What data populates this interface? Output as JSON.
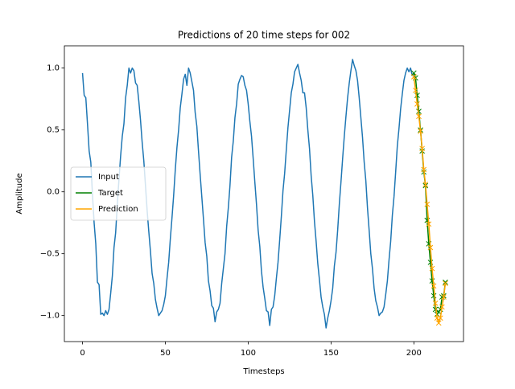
{
  "chart_data": {
    "type": "line",
    "title": "Predictions of 20 time steps for 002",
    "xlabel": "Timesteps",
    "ylabel": "Amplitude",
    "xlim": [
      -10.95,
      229.95
    ],
    "xticks": [
      0,
      50,
      100,
      150,
      200
    ],
    "ylim": [
      -1.21,
      1.18
    ],
    "yticks": [
      {
        "value": -1.0,
        "label": "−1.0"
      },
      {
        "value": -0.5,
        "label": "−0.5"
      },
      {
        "value": 0.0,
        "label": "0.0"
      },
      {
        "value": 0.5,
        "label": "0.5"
      },
      {
        "value": 1.0,
        "label": "1.0"
      }
    ],
    "legend": "center left",
    "series": [
      {
        "name": "Input",
        "color": "#1f77b4",
        "marker": null,
        "x": [
          0,
          1,
          2,
          3,
          4,
          5,
          6,
          7,
          8,
          9,
          10,
          11,
          12,
          13,
          14,
          15,
          16,
          17,
          18,
          19,
          20,
          21,
          22,
          23,
          24,
          25,
          26,
          27,
          28,
          29,
          30,
          31,
          32,
          33,
          34,
          35,
          36,
          37,
          38,
          39,
          40,
          41,
          42,
          43,
          44,
          45,
          46,
          47,
          48,
          49,
          50,
          51,
          52,
          53,
          54,
          55,
          56,
          57,
          58,
          59,
          60,
          61,
          62,
          63,
          64,
          65,
          66,
          67,
          68,
          69,
          70,
          71,
          72,
          73,
          74,
          75,
          76,
          77,
          78,
          79,
          80,
          81,
          82,
          83,
          84,
          85,
          86,
          87,
          88,
          89,
          90,
          91,
          92,
          93,
          94,
          95,
          96,
          97,
          98,
          99,
          100,
          101,
          102,
          103,
          104,
          105,
          106,
          107,
          108,
          109,
          110,
          111,
          112,
          113,
          114,
          115,
          116,
          117,
          118,
          119,
          120,
          121,
          122,
          123,
          124,
          125,
          126,
          127,
          128,
          129,
          130,
          131,
          132,
          133,
          134,
          135,
          136,
          137,
          138,
          139,
          140,
          141,
          142,
          143,
          144,
          145,
          146,
          147,
          148,
          149,
          150,
          151,
          152,
          153,
          154,
          155,
          156,
          157,
          158,
          159,
          160,
          161,
          162,
          163,
          164,
          165,
          166,
          167,
          168,
          169,
          170,
          171,
          172,
          173,
          174,
          175,
          176,
          177,
          178,
          179,
          180,
          181,
          182,
          183,
          184,
          185,
          186,
          187,
          188,
          189,
          190,
          191,
          192,
          193,
          194,
          195,
          196,
          197,
          198,
          199,
          200
        ],
        "values": [
          0.96,
          0.78,
          0.76,
          0.55,
          0.33,
          0.24,
          -0.02,
          -0.25,
          -0.42,
          -0.73,
          -0.75,
          -0.99,
          -0.98,
          -1.0,
          -0.96,
          -0.99,
          -0.95,
          -0.82,
          -0.68,
          -0.45,
          -0.33,
          -0.1,
          0.1,
          0.29,
          0.45,
          0.55,
          0.76,
          0.86,
          1.0,
          0.96,
          1.0,
          0.98,
          0.88,
          0.86,
          0.73,
          0.58,
          0.4,
          0.25,
          0.05,
          -0.15,
          -0.32,
          -0.48,
          -0.66,
          -0.74,
          -0.87,
          -0.94,
          -1.0,
          -0.98,
          -0.96,
          -0.91,
          -0.84,
          -0.7,
          -0.57,
          -0.38,
          -0.21,
          -0.03,
          0.18,
          0.36,
          0.5,
          0.68,
          0.79,
          0.91,
          0.95,
          0.86,
          1.0,
          0.96,
          0.89,
          0.82,
          0.64,
          0.53,
          0.33,
          0.14,
          -0.04,
          -0.22,
          -0.41,
          -0.52,
          -0.72,
          -0.8,
          -0.92,
          -0.94,
          -1.05,
          -0.97,
          -0.95,
          -0.9,
          -0.74,
          -0.62,
          -0.5,
          -0.28,
          -0.13,
          0.05,
          0.28,
          0.41,
          0.6,
          0.71,
          0.87,
          0.91,
          0.94,
          0.93,
          0.86,
          0.82,
          0.71,
          0.57,
          0.45,
          0.27,
          0.08,
          -0.1,
          -0.31,
          -0.44,
          -0.64,
          -0.77,
          -0.86,
          -0.96,
          -0.97,
          -1.08,
          -0.95,
          -0.93,
          -0.84,
          -0.7,
          -0.57,
          -0.39,
          -0.2,
          0.01,
          0.15,
          0.34,
          0.52,
          0.66,
          0.8,
          0.87,
          0.97,
          1.0,
          1.03,
          0.96,
          0.9,
          0.8,
          0.8,
          0.68,
          0.5,
          0.35,
          0.13,
          -0.03,
          -0.24,
          -0.4,
          -0.58,
          -0.71,
          -0.85,
          -0.93,
          -0.99,
          -1.1,
          -1.02,
          -0.96,
          -0.88,
          -0.78,
          -0.6,
          -0.49,
          -0.31,
          -0.1,
          0.08,
          0.27,
          0.45,
          0.61,
          0.76,
          0.88,
          0.98,
          1.07,
          1.02,
          0.98,
          0.9,
          0.76,
          0.6,
          0.44,
          0.24,
          0.09,
          -0.13,
          -0.31,
          -0.5,
          -0.62,
          -0.78,
          -0.88,
          -0.93,
          -1.0,
          -0.98,
          -0.97,
          -0.93,
          -0.83,
          -0.72,
          -0.55,
          -0.4,
          -0.19,
          -0.04,
          0.16,
          0.37,
          0.51,
          0.67,
          0.79,
          0.9,
          0.96,
          1.0,
          0.97,
          1.0,
          0.94,
          0.96
        ]
      },
      {
        "name": "Target",
        "color": "#008000",
        "marker": "x",
        "x": [
          200,
          201,
          202,
          203,
          204,
          205,
          206,
          207,
          208,
          209,
          210,
          211,
          212,
          213,
          214,
          215,
          216,
          217,
          218,
          219
        ],
        "values": [
          0.96,
          0.92,
          0.78,
          0.65,
          0.5,
          0.33,
          0.16,
          0.05,
          -0.23,
          -0.42,
          -0.57,
          -0.72,
          -0.84,
          -0.95,
          -0.99,
          -0.97,
          -0.95,
          -0.85,
          -0.84,
          -0.73
        ]
      },
      {
        "name": "Prediction",
        "color": "#ffa500",
        "marker": "x",
        "x": [
          200,
          201,
          202,
          203,
          204,
          205,
          206,
          207,
          208,
          209,
          210,
          211,
          212,
          213,
          214,
          215,
          216,
          217,
          218,
          219
        ],
        "values": [
          0.93,
          0.82,
          0.71,
          0.61,
          0.49,
          0.35,
          0.18,
          0.06,
          -0.1,
          -0.26,
          -0.45,
          -0.62,
          -0.76,
          -0.9,
          -1.02,
          -1.06,
          -1.02,
          -0.93,
          -0.85,
          -0.74
        ]
      }
    ]
  }
}
